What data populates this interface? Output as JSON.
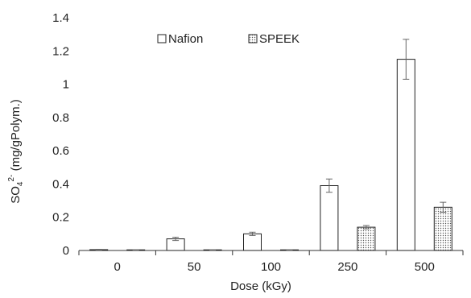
{
  "chart_data": {
    "type": "bar",
    "title": "",
    "xlabel": "Dose (kGy)",
    "ylabel": {
      "base": "SO",
      "sub": "4",
      "sup": "2-",
      "rest": " (mg/gPolym.)"
    },
    "categories": [
      "0",
      "50",
      "100",
      "250",
      "500"
    ],
    "ylim": [
      0,
      1.4
    ],
    "yticks": [
      0,
      0.2,
      0.4,
      0.6,
      0.8,
      1,
      1.2,
      1.4
    ],
    "ytick_labels": [
      "0",
      "0.2",
      "0.4",
      "0.6",
      "0.8",
      "1",
      "1.2",
      "1.4"
    ],
    "grid": false,
    "legend_position": "top-center",
    "series": [
      {
        "name": "Nafion",
        "pattern": "solid-white",
        "values": [
          0.005,
          0.07,
          0.1,
          0.39,
          1.15
        ],
        "errors": [
          0.002,
          0.01,
          0.01,
          0.04,
          0.12
        ]
      },
      {
        "name": "SPEEK",
        "pattern": "dotted",
        "values": [
          0.003,
          0.003,
          0.003,
          0.14,
          0.26
        ],
        "errors": [
          0.001,
          0.001,
          0.001,
          0.01,
          0.03
        ]
      }
    ]
  },
  "colors": {
    "axis": "#333333",
    "bar_edge": "#222222",
    "fill": "#ffffff",
    "dots": "#555555",
    "error": "#666666"
  }
}
